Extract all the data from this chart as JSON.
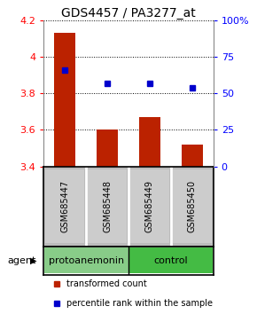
{
  "title": "GDS4457 / PA3277_at",
  "samples": [
    "GSM685447",
    "GSM685448",
    "GSM685449",
    "GSM685450"
  ],
  "bar_values": [
    4.13,
    3.6,
    3.67,
    3.52
  ],
  "bar_bottom": 3.4,
  "percentile_values": [
    3.93,
    3.855,
    3.855,
    3.83
  ],
  "ylim_left": [
    3.4,
    4.2
  ],
  "ylim_right": [
    0,
    100
  ],
  "yticks_left": [
    3.4,
    3.6,
    3.8,
    4.0,
    4.2
  ],
  "yticks_right": [
    0,
    25,
    50,
    75,
    100
  ],
  "ytick_labels_right": [
    "0",
    "25",
    "50",
    "75",
    "100%"
  ],
  "bar_color": "#bb2200",
  "marker_color": "#0000cc",
  "groups": [
    {
      "label": "protoanemonin",
      "samples": [
        0,
        1
      ],
      "color": "#88cc88"
    },
    {
      "label": "control",
      "samples": [
        2,
        3
      ],
      "color": "#44bb44"
    }
  ],
  "agent_label": "agent",
  "legend_items": [
    {
      "color": "#bb2200",
      "label": "transformed count"
    },
    {
      "color": "#0000cc",
      "label": "percentile rank within the sample"
    }
  ],
  "plot_bg": "#ffffff",
  "sample_area_bg": "#bbbbbb",
  "title_fontsize": 10,
  "tick_fontsize": 8,
  "sample_fontsize": 7,
  "group_fontsize": 8,
  "legend_fontsize": 7,
  "bar_width": 0.5
}
